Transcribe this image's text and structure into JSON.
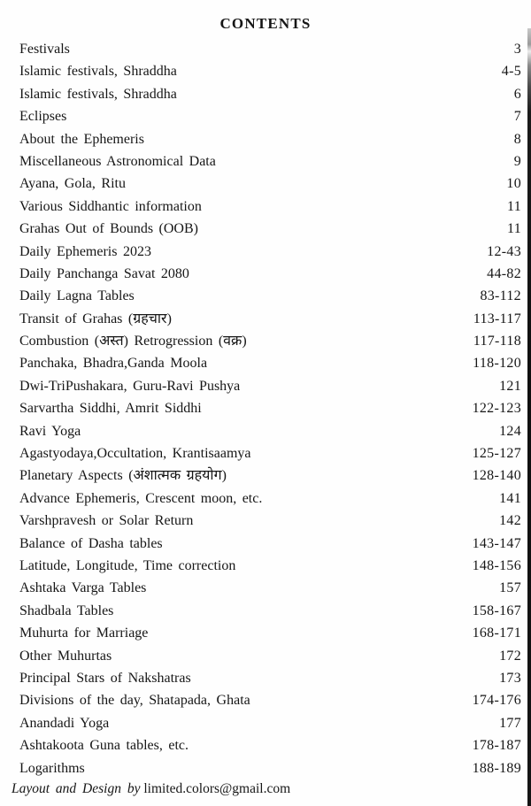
{
  "colors": {
    "paper": "#fefefe",
    "ink": "#161616"
  },
  "toc": {
    "title": "CONTENTS",
    "entries": [
      {
        "label": "Festivals",
        "pages": "3"
      },
      {
        "label": "Islamic festivals, Shraddha",
        "pages": "4-5"
      },
      {
        "label": "Islamic festivals, Shraddha",
        "pages": "6"
      },
      {
        "label": "Eclipses",
        "pages": "7"
      },
      {
        "label": "About the Ephemeris",
        "pages": "8"
      },
      {
        "label": "Miscellaneous Astronomical Data",
        "pages": "9"
      },
      {
        "label": "Ayana, Gola, Ritu",
        "pages": "10"
      },
      {
        "label": "Various Siddhantic information",
        "pages": "11"
      },
      {
        "label": "Grahas Out of Bounds (OOB)",
        "pages": "11"
      },
      {
        "label": "Daily Ephemeris 2023",
        "pages": "12-43"
      },
      {
        "label": "Daily Panchanga Savat 2080",
        "pages": "44-82"
      },
      {
        "label": "Daily Lagna Tables",
        "pages": "83-112"
      },
      {
        "label": "Transit of Grahas (ग्रहचार)",
        "pages": "113-117"
      },
      {
        "label": "Combustion (अस्त) Retrogression (वक्र)",
        "pages": "117-118"
      },
      {
        "label": "Panchaka, Bhadra,Ganda Moola",
        "pages": "118-120"
      },
      {
        "label": "Dwi-TriPushakara, Guru-Ravi Pushya",
        "pages": "121"
      },
      {
        "label": "Sarvartha Siddhi, Amrit Siddhi",
        "pages": "122-123"
      },
      {
        "label": "Ravi Yoga",
        "pages": "124"
      },
      {
        "label": "Agastyodaya,Occultation, Krantisaamya",
        "pages": "125-127"
      },
      {
        "label": "Planetary Aspects (अंशात्मक ग्रहयोग)",
        "pages": "128-140"
      },
      {
        "label": "Advance Ephemeris, Crescent moon, etc.",
        "pages": "141"
      },
      {
        "label": "Varshpravesh or Solar Return",
        "pages": "142"
      },
      {
        "label": "Balance of Dasha tables",
        "pages": "143-147"
      },
      {
        "label": "Latitude, Longitude, Time correction",
        "pages": "148-156"
      },
      {
        "label": "Ashtaka Varga Tables",
        "pages": "157"
      },
      {
        "label": "Shadbala Tables",
        "pages": "158-167"
      },
      {
        "label": "Muhurta for Marriage",
        "pages": "168-171"
      },
      {
        "label": "Other Muhurtas",
        "pages": "172"
      },
      {
        "label": "Principal Stars of Nakshatras",
        "pages": "173"
      },
      {
        "label": "Divisions of the day, Shatapada, Ghata",
        "pages": "174-176"
      },
      {
        "label": "Anandadi Yoga",
        "pages": "177"
      },
      {
        "label": "Ashtakoota Guna tables, etc.",
        "pages": "178-187"
      },
      {
        "label": "Logarithms",
        "pages": "188-189"
      }
    ],
    "footer": {
      "byline": "Layout and Design by",
      "email": "limited.colors@gmail.com"
    }
  }
}
